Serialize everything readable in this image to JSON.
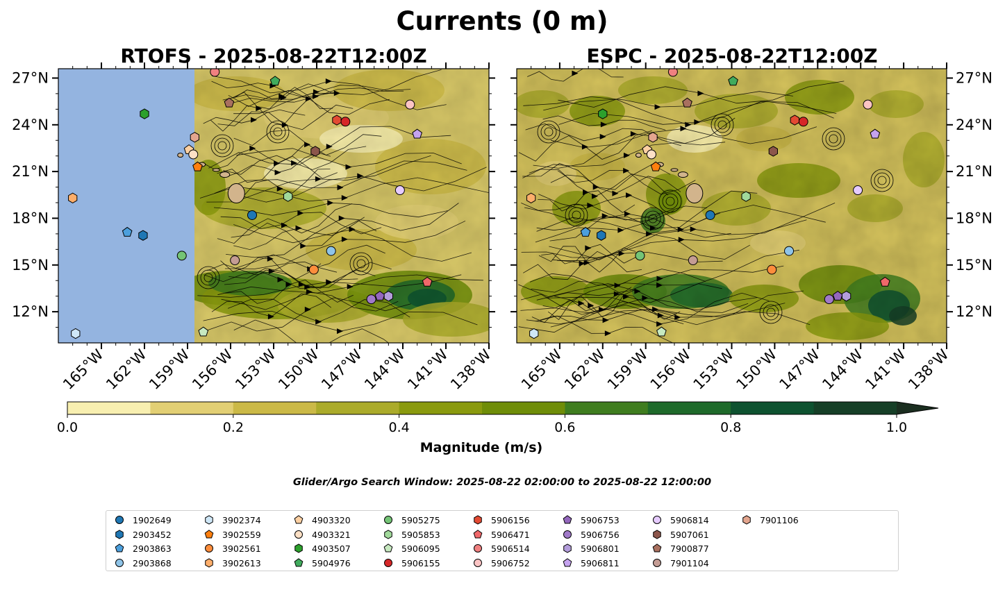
{
  "figure": {
    "title": "Currents (0 m)",
    "search_window": "Glider/Argo Search Window: 2025-08-22 02:00:00 to 2025-08-22 12:00:00"
  },
  "chart_data": [
    {
      "type": "heatmap",
      "title": "RTOFS - 2025-08-22T12:00Z",
      "xlabel": "",
      "ylabel": "",
      "xlim": [
        -168,
        -138
      ],
      "ylim": [
        10,
        27.6
      ],
      "x_tick_labels": [
        "165°W",
        "162°W",
        "159°W",
        "156°W",
        "153°W",
        "150°W",
        "147°W",
        "144°W",
        "141°W",
        "138°W"
      ],
      "y_tick_labels": [
        "12°N",
        "15°N",
        "18°N",
        "21°N",
        "24°N",
        "27°N"
      ],
      "overlay": "streamlines",
      "note": "model domain begins near 158.8°W; area to the west shown as no-data"
    },
    {
      "type": "heatmap",
      "title": "ESPC - 2025-08-22T12:00Z",
      "xlabel": "",
      "ylabel": "",
      "xlim": [
        -168,
        -138
      ],
      "ylim": [
        10,
        27.6
      ],
      "x_tick_labels": [
        "165°W",
        "162°W",
        "159°W",
        "156°W",
        "153°W",
        "150°W",
        "147°W",
        "144°W",
        "141°W",
        "138°W"
      ],
      "y_tick_labels": [
        "12°N",
        "15°N",
        "18°N",
        "21°N",
        "24°N",
        "27°N"
      ],
      "overlay": "streamlines"
    }
  ],
  "colorbar": {
    "label": "Magnitude (m/s)",
    "min": 0.0,
    "max": 1.0,
    "extend": "max",
    "ticks": [
      "0.0",
      "0.2",
      "0.4",
      "0.6",
      "0.8",
      "1.0"
    ],
    "levels": [
      0,
      0.1,
      0.2,
      0.3,
      0.4,
      0.5,
      0.6,
      0.7,
      0.8,
      0.9,
      1.0
    ],
    "colors": [
      "#f8efb0",
      "#e2cf74",
      "#cbb947",
      "#abab2a",
      "#8a9a0e",
      "#6f8d08",
      "#3f7d1f",
      "#1e6a2a",
      "#0e5230",
      "#163f27",
      "#1b2e20"
    ]
  },
  "colors": {
    "no_data": "#94b4e0",
    "land": "#d2b48c"
  },
  "floats": [
    {
      "id": "1902649",
      "marker": "circle",
      "color": "#1f77b4",
      "lon": -154.5,
      "lat": 18.2
    },
    {
      "id": "2903452",
      "marker": "hexagon",
      "color": "#1f77b4",
      "lon": -162.1,
      "lat": 16.9
    },
    {
      "id": "2903863",
      "marker": "pentagon",
      "color": "#4c9fdc",
      "lon": -163.2,
      "lat": 17.1
    },
    {
      "id": "2903868",
      "marker": "circle",
      "color": "#8fc4e8",
      "lon": -149.0,
      "lat": 15.9
    },
    {
      "id": "3902374",
      "marker": "hexagon",
      "color": "#cfe7f7",
      "lon": -166.8,
      "lat": 10.6
    },
    {
      "id": "3902559",
      "marker": "pentagon",
      "color": "#ff7f0e",
      "lon": -158.3,
      "lat": 21.3
    },
    {
      "id": "3902561",
      "marker": "circle",
      "color": "#fd8d3c",
      "lon": -150.2,
      "lat": 14.7
    },
    {
      "id": "3902613",
      "marker": "hexagon",
      "color": "#fdae6b",
      "lon": -167.0,
      "lat": 19.3
    },
    {
      "id": "4903320",
      "marker": "pentagon",
      "color": "#fdd0a2",
      "lon": -158.9,
      "lat": 22.4
    },
    {
      "id": "4903321",
      "marker": "circle",
      "color": "#fde0c5",
      "lon": -158.6,
      "lat": 22.1
    },
    {
      "id": "4903507",
      "marker": "hexagon",
      "color": "#2ca02c",
      "lon": -162.0,
      "lat": 24.7
    },
    {
      "id": "5904976",
      "marker": "pentagon",
      "color": "#41ab5d",
      "lon": -152.9,
      "lat": 26.8
    },
    {
      "id": "5905275",
      "marker": "circle",
      "color": "#74c476",
      "lon": -159.4,
      "lat": 15.6
    },
    {
      "id": "5905853",
      "marker": "hexagon",
      "color": "#a1d99b",
      "lon": -152.0,
      "lat": 19.4
    },
    {
      "id": "5906095",
      "marker": "pentagon",
      "color": "#c7e9c0",
      "lon": -157.9,
      "lat": 10.7
    },
    {
      "id": "5906155",
      "marker": "circle",
      "color": "#d62728",
      "lon": -148.0,
      "lat": 24.2
    },
    {
      "id": "5906156",
      "marker": "hexagon",
      "color": "#e34a33",
      "lon": -148.6,
      "lat": 24.3
    },
    {
      "id": "5906471",
      "marker": "pentagon",
      "color": "#f0686a",
      "lon": -142.3,
      "lat": 13.9
    },
    {
      "id": "5906514",
      "marker": "circle",
      "color": "#f08080",
      "lon": -157.1,
      "lat": 27.4
    },
    {
      "id": "5906752",
      "marker": "circle",
      "color": "#fbc4c4",
      "lon": -143.5,
      "lat": 25.3
    },
    {
      "id": "5906753",
      "marker": "pentagon",
      "color": "#9467bd",
      "lon": -145.6,
      "lat": 13.0
    },
    {
      "id": "5906756",
      "marker": "circle",
      "color": "#a17ac9",
      "lon": -146.2,
      "lat": 12.8
    },
    {
      "id": "5906801",
      "marker": "hexagon",
      "color": "#b39ddb",
      "lon": -145.0,
      "lat": 13.0
    },
    {
      "id": "5906811",
      "marker": "pentagon",
      "color": "#c5a3ef",
      "lon": -143.0,
      "lat": 23.4
    },
    {
      "id": "5906814",
      "marker": "circle",
      "color": "#e6cbff",
      "lon": -144.2,
      "lat": 19.8
    },
    {
      "id": "5907061",
      "marker": "hexagon",
      "color": "#8c564b",
      "lon": -150.1,
      "lat": 22.3
    },
    {
      "id": "7900877",
      "marker": "pentagon",
      "color": "#a9705f",
      "lon": -156.1,
      "lat": 25.4
    },
    {
      "id": "7901104",
      "marker": "circle",
      "color": "#c49c94",
      "lon": -155.7,
      "lat": 15.3
    },
    {
      "id": "7901106",
      "marker": "hexagon",
      "color": "#e3a58e",
      "lon": -158.5,
      "lat": 23.2
    }
  ]
}
